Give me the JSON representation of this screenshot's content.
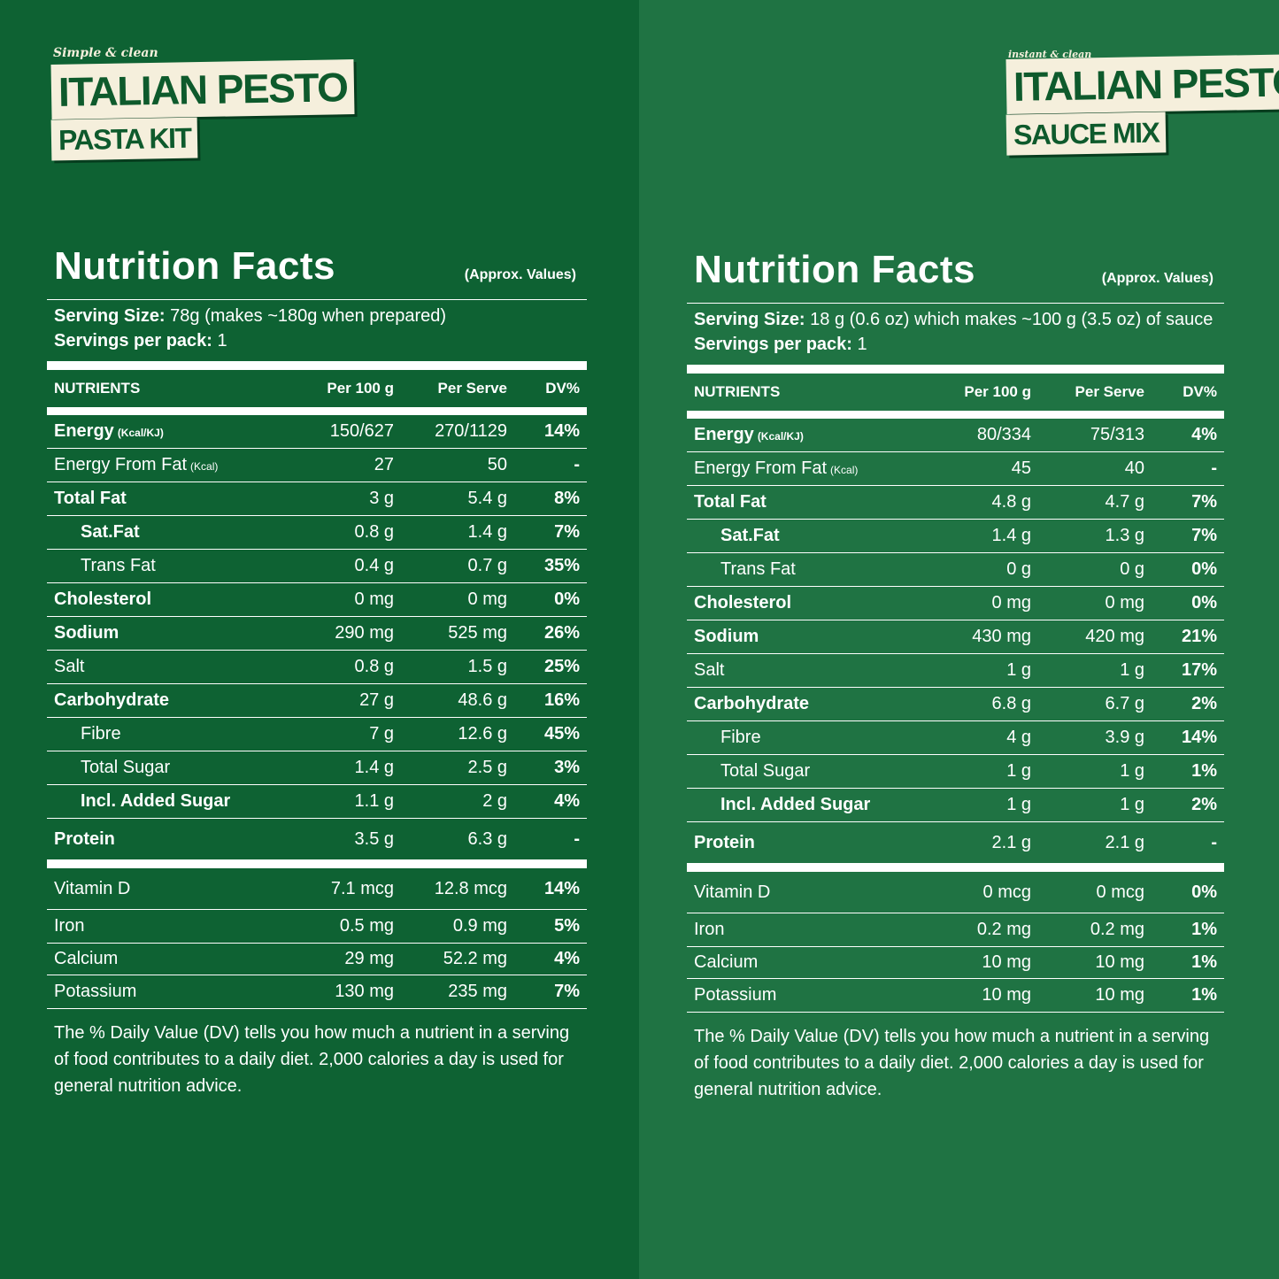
{
  "panels": [
    {
      "logo": {
        "tagline": "Simple & clean",
        "line1": "ITALIAN PESTO",
        "line2": "PASTA KIT"
      },
      "title": "Nutrition Facts",
      "approx": "(Approx. Values)",
      "serving_size_label": "Serving Size:",
      "serving_size": "78g (makes ~180g when prepared)",
      "servings_label": "Servings per pack:",
      "servings": "1",
      "header": [
        "NUTRIENTS",
        "Per 100 g",
        "Per Serve",
        "DV%"
      ],
      "rows": [
        {
          "name": "Energy",
          "note": "(Kcal/KJ)",
          "per_100g": "150/627",
          "per_serve": "270/1129",
          "dv": "14%"
        },
        {
          "name": "Energy From Fat",
          "note": "(Kcal)",
          "per_100g": "27",
          "per_serve": "50",
          "dv": "-"
        },
        {
          "name": "Total Fat",
          "per_100g": "3 g",
          "per_serve": "5.4 g",
          "dv": "8%"
        },
        {
          "name": "Sat.Fat",
          "per_100g": "0.8 g",
          "per_serve": "1.4 g",
          "dv": "7%"
        },
        {
          "name": "Trans Fat",
          "per_100g": "0.4 g",
          "per_serve": "0.7 g",
          "dv": "35%"
        },
        {
          "name": "Cholesterol",
          "per_100g": "0 mg",
          "per_serve": "0 mg",
          "dv": "0%"
        },
        {
          "name": "Sodium",
          "per_100g": "290 mg",
          "per_serve": "525 mg",
          "dv": "26%"
        },
        {
          "name": "Salt",
          "per_100g": "0.8 g",
          "per_serve": "1.5 g",
          "dv": "25%"
        },
        {
          "name": "Carbohydrate",
          "per_100g": "27 g",
          "per_serve": "48.6 g",
          "dv": "16%"
        },
        {
          "name": "Fibre",
          "per_100g": "7 g",
          "per_serve": "12.6 g",
          "dv": "45%"
        },
        {
          "name": "Total Sugar",
          "per_100g": "1.4 g",
          "per_serve": "2.5 g",
          "dv": "3%"
        },
        {
          "name": "Incl. Added Sugar",
          "per_100g": "1.1 g",
          "per_serve": "2 g",
          "dv": "4%"
        },
        {
          "name": "Protein",
          "per_100g": "3.5 g",
          "per_serve": "6.3 g",
          "dv": "-"
        }
      ],
      "minerals": [
        {
          "name": "Vitamin D",
          "per_100g": "7.1 mcg",
          "per_serve": "12.8 mcg",
          "dv": "14%"
        },
        {
          "name": "Iron",
          "per_100g": "0.5 mg",
          "per_serve": "0.9 mg",
          "dv": "5%"
        },
        {
          "name": "Calcium",
          "per_100g": "29 mg",
          "per_serve": "52.2 mg",
          "dv": "4%"
        },
        {
          "name": "Potassium",
          "per_100g": "130 mg",
          "per_serve": "235 mg",
          "dv": "7%"
        }
      ],
      "footnote": "The % Daily Value (DV) tells you how much a nutrient in a serving of food contributes to a daily diet. 2,000 calories a day is used for general nutrition advice."
    },
    {
      "logo": {
        "tagline": "instant & clean",
        "line1": "ITALIAN PESTO",
        "line2": "SAUCE MIX"
      },
      "title": "Nutrition Facts",
      "approx": "(Approx. Values)",
      "serving_size_label": "Serving Size:",
      "serving_size": "18 g (0.6 oz) which makes ~100 g (3.5 oz) of sauce",
      "servings_label": "Servings per pack:",
      "servings": "1",
      "header": [
        "NUTRIENTS",
        "Per 100 g",
        "Per Serve",
        "DV%"
      ],
      "rows": [
        {
          "name": "Energy",
          "note": "(Kcal/KJ)",
          "per_100g": "80/334",
          "per_serve": "75/313",
          "dv": "4%"
        },
        {
          "name": "Energy From Fat",
          "note": "(Kcal)",
          "per_100g": "45",
          "per_serve": "40",
          "dv": "-"
        },
        {
          "name": "Total Fat",
          "per_100g": "4.8 g",
          "per_serve": "4.7 g",
          "dv": "7%"
        },
        {
          "name": "Sat.Fat",
          "per_100g": "1.4 g",
          "per_serve": "1.3 g",
          "dv": "7%"
        },
        {
          "name": "Trans Fat",
          "per_100g": "0 g",
          "per_serve": "0 g",
          "dv": "0%"
        },
        {
          "name": "Cholesterol",
          "per_100g": "0 mg",
          "per_serve": "0 mg",
          "dv": "0%"
        },
        {
          "name": "Sodium",
          "per_100g": "430 mg",
          "per_serve": "420 mg",
          "dv": "21%"
        },
        {
          "name": "Salt",
          "per_100g": "1 g",
          "per_serve": "1 g",
          "dv": "17%"
        },
        {
          "name": "Carbohydrate",
          "per_100g": "6.8 g",
          "per_serve": "6.7 g",
          "dv": "2%"
        },
        {
          "name": "Fibre",
          "per_100g": "4 g",
          "per_serve": "3.9 g",
          "dv": "14%"
        },
        {
          "name": "Total Sugar",
          "per_100g": "1 g",
          "per_serve": "1 g",
          "dv": "1%"
        },
        {
          "name": "Incl. Added Sugar",
          "per_100g": "1 g",
          "per_serve": "1 g",
          "dv": "2%"
        },
        {
          "name": "Protein",
          "per_100g": "2.1 g",
          "per_serve": "2.1 g",
          "dv": "-"
        }
      ],
      "minerals": [
        {
          "name": "Vitamin D",
          "per_100g": "0 mcg",
          "per_serve": "0 mcg",
          "dv": "0%"
        },
        {
          "name": "Iron",
          "per_100g": "0.2 mg",
          "per_serve": "0.2 mg",
          "dv": "1%"
        },
        {
          "name": "Calcium",
          "per_100g": "10 mg",
          "per_serve": "10 mg",
          "dv": "1%"
        },
        {
          "name": "Potassium",
          "per_100g": "10 mg",
          "per_serve": "10 mg",
          "dv": "1%"
        }
      ],
      "footnote": "The % Daily Value (DV) tells you how much a nutrient in a serving of food contributes to a daily diet. 2,000 calories a day is used for general nutrition advice."
    }
  ]
}
